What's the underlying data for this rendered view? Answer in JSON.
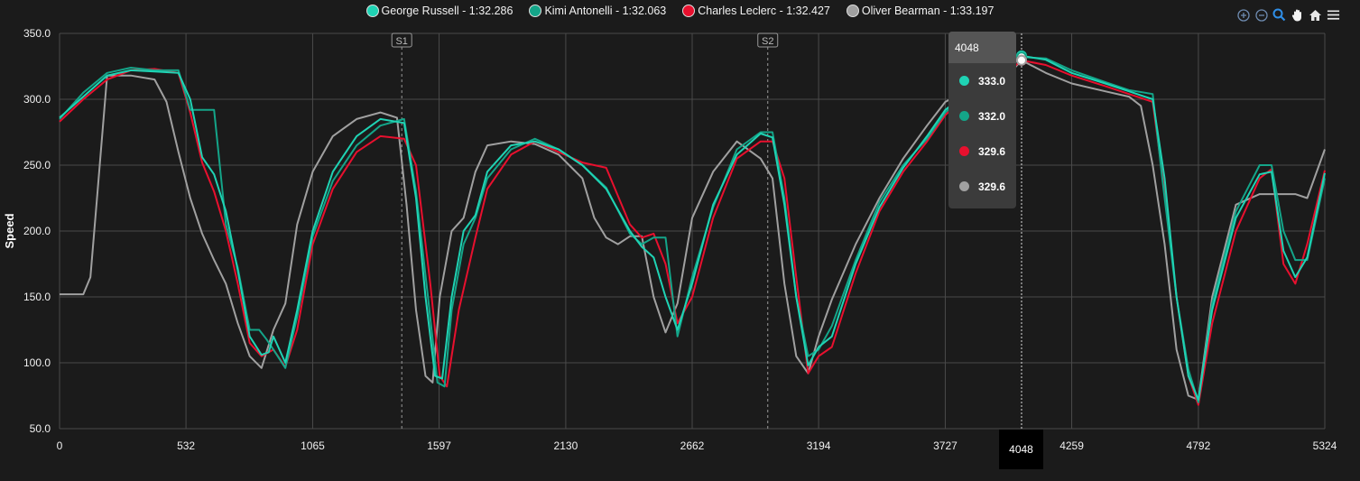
{
  "chart_data": {
    "type": "line",
    "ylabel": "Speed",
    "ylim": [
      50,
      350
    ],
    "xlim": [
      0,
      5324
    ],
    "y_ticks": [
      "50.0",
      "100.0",
      "150.0",
      "200.0",
      "250.0",
      "300.0",
      "350.0"
    ],
    "x_ticks": [
      "0",
      "532",
      "1065",
      "1597",
      "2130",
      "2662",
      "3194",
      "3727",
      "4259",
      "4792",
      "5324"
    ],
    "grid": true,
    "legend_position": "top-center",
    "sector_markers": [
      {
        "label": "S1",
        "x": 1440
      },
      {
        "label": "S2",
        "x": 2980
      }
    ],
    "cursor": {
      "x": 4048,
      "x_label": "4048",
      "values": [
        "333.0",
        "332.0",
        "329.6",
        "329.6"
      ]
    },
    "series": [
      {
        "name": "George Russell - 1:32.286",
        "color": "#1fd3b4",
        "points": [
          [
            0,
            286
          ],
          [
            100,
            302
          ],
          [
            200,
            318
          ],
          [
            300,
            322
          ],
          [
            400,
            321
          ],
          [
            500,
            320
          ],
          [
            550,
            300
          ],
          [
            600,
            256
          ],
          [
            650,
            243
          ],
          [
            700,
            215
          ],
          [
            750,
            170
          ],
          [
            800,
            120
          ],
          [
            850,
            106
          ],
          [
            880,
            108
          ],
          [
            900,
            120
          ],
          [
            920,
            112
          ],
          [
            950,
            100
          ],
          [
            1000,
            140
          ],
          [
            1065,
            200
          ],
          [
            1150,
            245
          ],
          [
            1250,
            272
          ],
          [
            1350,
            285
          ],
          [
            1450,
            282
          ],
          [
            1500,
            225
          ],
          [
            1540,
            150
          ],
          [
            1580,
            90
          ],
          [
            1610,
            88
          ],
          [
            1650,
            150
          ],
          [
            1700,
            200
          ],
          [
            1750,
            212
          ],
          [
            1800,
            245
          ],
          [
            1900,
            265
          ],
          [
            2000,
            268
          ],
          [
            2100,
            262
          ],
          [
            2200,
            250
          ],
          [
            2300,
            232
          ],
          [
            2400,
            200
          ],
          [
            2450,
            188
          ],
          [
            2500,
            180
          ],
          [
            2550,
            150
          ],
          [
            2600,
            125
          ],
          [
            2662,
            160
          ],
          [
            2750,
            220
          ],
          [
            2850,
            258
          ],
          [
            2950,
            274
          ],
          [
            3000,
            271
          ],
          [
            3050,
            220
          ],
          [
            3100,
            150
          ],
          [
            3150,
            98
          ],
          [
            3194,
            112
          ],
          [
            3250,
            120
          ],
          [
            3350,
            175
          ],
          [
            3450,
            218
          ],
          [
            3550,
            248
          ],
          [
            3650,
            272
          ],
          [
            3727,
            292
          ],
          [
            3800,
            302
          ],
          [
            3900,
            312
          ],
          [
            4000,
            325
          ],
          [
            4048,
            333
          ],
          [
            4150,
            330
          ],
          [
            4259,
            320
          ],
          [
            4400,
            312
          ],
          [
            4500,
            306
          ],
          [
            4600,
            300
          ],
          [
            4650,
            240
          ],
          [
            4700,
            150
          ],
          [
            4750,
            90
          ],
          [
            4792,
            72
          ],
          [
            4850,
            140
          ],
          [
            4950,
            210
          ],
          [
            5050,
            243
          ],
          [
            5100,
            245
          ],
          [
            5150,
            185
          ],
          [
            5200,
            165
          ],
          [
            5250,
            180
          ],
          [
            5324,
            244
          ]
        ]
      },
      {
        "name": "Kimi Antonelli - 1:32.063",
        "color": "#14a589",
        "points": [
          [
            0,
            285
          ],
          [
            100,
            305
          ],
          [
            200,
            320
          ],
          [
            300,
            324
          ],
          [
            400,
            322
          ],
          [
            500,
            322
          ],
          [
            550,
            292
          ],
          [
            650,
            292
          ],
          [
            700,
            205
          ],
          [
            750,
            172
          ],
          [
            800,
            125
          ],
          [
            840,
            125
          ],
          [
            870,
            118
          ],
          [
            900,
            110
          ],
          [
            950,
            96
          ],
          [
            1000,
            135
          ],
          [
            1065,
            196
          ],
          [
            1150,
            238
          ],
          [
            1250,
            265
          ],
          [
            1350,
            280
          ],
          [
            1450,
            285
          ],
          [
            1500,
            230
          ],
          [
            1550,
            150
          ],
          [
            1590,
            85
          ],
          [
            1620,
            82
          ],
          [
            1650,
            140
          ],
          [
            1700,
            190
          ],
          [
            1750,
            210
          ],
          [
            1800,
            240
          ],
          [
            1900,
            262
          ],
          [
            2000,
            270
          ],
          [
            2100,
            262
          ],
          [
            2200,
            250
          ],
          [
            2300,
            233
          ],
          [
            2400,
            198
          ],
          [
            2450,
            190
          ],
          [
            2500,
            195
          ],
          [
            2550,
            195
          ],
          [
            2600,
            120
          ],
          [
            2662,
            165
          ],
          [
            2750,
            218
          ],
          [
            2850,
            262
          ],
          [
            2950,
            275
          ],
          [
            3000,
            275
          ],
          [
            3050,
            225
          ],
          [
            3100,
            150
          ],
          [
            3150,
            105
          ],
          [
            3194,
            110
          ],
          [
            3250,
            128
          ],
          [
            3350,
            178
          ],
          [
            3450,
            222
          ],
          [
            3550,
            250
          ],
          [
            3650,
            270
          ],
          [
            3727,
            290
          ],
          [
            3800,
            302
          ],
          [
            3900,
            313
          ],
          [
            4000,
            325
          ],
          [
            4048,
            332
          ],
          [
            4150,
            331
          ],
          [
            4259,
            322
          ],
          [
            4400,
            313
          ],
          [
            4500,
            307
          ],
          [
            4600,
            304
          ],
          [
            4640,
            240
          ],
          [
            4700,
            150
          ],
          [
            4750,
            95
          ],
          [
            4792,
            70
          ],
          [
            4850,
            145
          ],
          [
            4950,
            215
          ],
          [
            5050,
            250
          ],
          [
            5100,
            250
          ],
          [
            5150,
            200
          ],
          [
            5200,
            178
          ],
          [
            5250,
            178
          ],
          [
            5324,
            240
          ]
        ]
      },
      {
        "name": "Charles Leclerc - 1:32.427",
        "color": "#e8102e",
        "points": [
          [
            0,
            283
          ],
          [
            100,
            300
          ],
          [
            200,
            315
          ],
          [
            300,
            322
          ],
          [
            400,
            323
          ],
          [
            500,
            320
          ],
          [
            550,
            290
          ],
          [
            600,
            252
          ],
          [
            650,
            230
          ],
          [
            700,
            200
          ],
          [
            750,
            160
          ],
          [
            800,
            115
          ],
          [
            850,
            105
          ],
          [
            900,
            110
          ],
          [
            950,
            97
          ],
          [
            1000,
            125
          ],
          [
            1065,
            190
          ],
          [
            1150,
            232
          ],
          [
            1250,
            260
          ],
          [
            1350,
            272
          ],
          [
            1450,
            270
          ],
          [
            1500,
            250
          ],
          [
            1560,
            160
          ],
          [
            1600,
            90
          ],
          [
            1630,
            82
          ],
          [
            1680,
            140
          ],
          [
            1750,
            195
          ],
          [
            1800,
            232
          ],
          [
            1900,
            258
          ],
          [
            2000,
            268
          ],
          [
            2100,
            260
          ],
          [
            2200,
            252
          ],
          [
            2300,
            248
          ],
          [
            2400,
            205
          ],
          [
            2450,
            195
          ],
          [
            2500,
            198
          ],
          [
            2550,
            175
          ],
          [
            2600,
            130
          ],
          [
            2662,
            150
          ],
          [
            2750,
            210
          ],
          [
            2850,
            255
          ],
          [
            2950,
            268
          ],
          [
            3000,
            268
          ],
          [
            3050,
            240
          ],
          [
            3100,
            165
          ],
          [
            3150,
            92
          ],
          [
            3194,
            105
          ],
          [
            3250,
            112
          ],
          [
            3350,
            168
          ],
          [
            3450,
            215
          ],
          [
            3550,
            245
          ],
          [
            3650,
            268
          ],
          [
            3727,
            288
          ],
          [
            3800,
            300
          ],
          [
            3900,
            310
          ],
          [
            4000,
            322
          ],
          [
            4048,
            329.6
          ],
          [
            4150,
            326
          ],
          [
            4259,
            318
          ],
          [
            4400,
            310
          ],
          [
            4500,
            304
          ],
          [
            4600,
            298
          ],
          [
            4650,
            230
          ],
          [
            4700,
            150
          ],
          [
            4750,
            90
          ],
          [
            4792,
            68
          ],
          [
            4850,
            130
          ],
          [
            4950,
            200
          ],
          [
            5050,
            240
          ],
          [
            5100,
            247
          ],
          [
            5150,
            175
          ],
          [
            5200,
            160
          ],
          [
            5250,
            190
          ],
          [
            5324,
            246
          ]
        ]
      },
      {
        "name": "Oliver Bearman - 1:33.197",
        "color": "#a0a0a0",
        "points": [
          [
            0,
            152
          ],
          [
            100,
            152
          ],
          [
            130,
            165
          ],
          [
            160,
            230
          ],
          [
            200,
            318
          ],
          [
            300,
            318
          ],
          [
            400,
            315
          ],
          [
            450,
            298
          ],
          [
            500,
            260
          ],
          [
            550,
            225
          ],
          [
            600,
            198
          ],
          [
            650,
            178
          ],
          [
            700,
            160
          ],
          [
            750,
            130
          ],
          [
            800,
            105
          ],
          [
            850,
            96
          ],
          [
            900,
            125
          ],
          [
            950,
            145
          ],
          [
            1000,
            205
          ],
          [
            1065,
            245
          ],
          [
            1150,
            272
          ],
          [
            1250,
            285
          ],
          [
            1350,
            290
          ],
          [
            1420,
            286
          ],
          [
            1460,
            220
          ],
          [
            1500,
            140
          ],
          [
            1540,
            90
          ],
          [
            1570,
            85
          ],
          [
            1600,
            150
          ],
          [
            1650,
            200
          ],
          [
            1700,
            210
          ],
          [
            1750,
            245
          ],
          [
            1800,
            265
          ],
          [
            1900,
            268
          ],
          [
            2000,
            266
          ],
          [
            2100,
            258
          ],
          [
            2200,
            240
          ],
          [
            2250,
            210
          ],
          [
            2300,
            195
          ],
          [
            2350,
            190
          ],
          [
            2400,
            196
          ],
          [
            2450,
            196
          ],
          [
            2500,
            150
          ],
          [
            2550,
            123
          ],
          [
            2600,
            145
          ],
          [
            2662,
            210
          ],
          [
            2750,
            245
          ],
          [
            2850,
            268
          ],
          [
            2950,
            255
          ],
          [
            3000,
            240
          ],
          [
            3050,
            160
          ],
          [
            3100,
            105
          ],
          [
            3150,
            92
          ],
          [
            3194,
            120
          ],
          [
            3250,
            148
          ],
          [
            3350,
            190
          ],
          [
            3450,
            225
          ],
          [
            3550,
            255
          ],
          [
            3650,
            280
          ],
          [
            3727,
            298
          ],
          [
            3800,
            305
          ],
          [
            3900,
            310
          ],
          [
            4000,
            320
          ],
          [
            4048,
            329.6
          ],
          [
            4150,
            320
          ],
          [
            4259,
            312
          ],
          [
            4400,
            306
          ],
          [
            4500,
            302
          ],
          [
            4550,
            295
          ],
          [
            4600,
            250
          ],
          [
            4650,
            190
          ],
          [
            4700,
            110
          ],
          [
            4750,
            75
          ],
          [
            4792,
            72
          ],
          [
            4850,
            150
          ],
          [
            4950,
            220
          ],
          [
            5050,
            228
          ],
          [
            5200,
            228
          ],
          [
            5250,
            225
          ],
          [
            5324,
            262
          ]
        ]
      }
    ]
  },
  "toolbar": {
    "zoom_in": "⊕",
    "zoom_out": "⊖",
    "zoom_select": "🔍",
    "pan": "✋",
    "home": "⌂",
    "menu": "≡"
  }
}
